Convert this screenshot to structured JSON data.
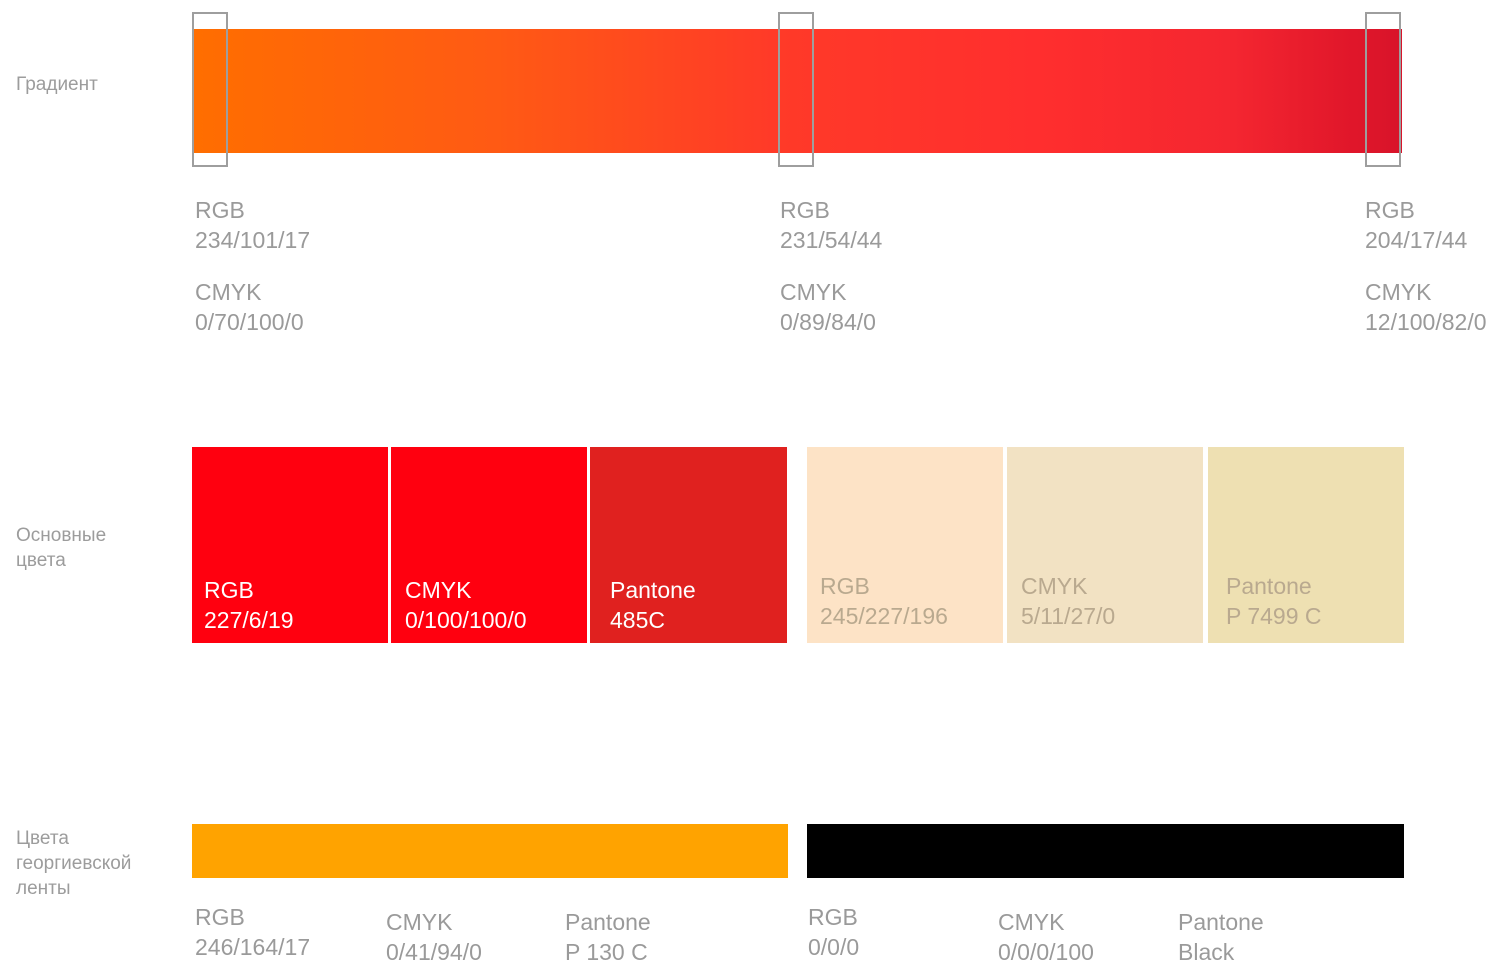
{
  "labels": {
    "gradient": "Градиент",
    "main_colors": "Основные\nцвета",
    "ribbon_colors": "Цвета\nгеоргиевской\nленты"
  },
  "gradient": {
    "stops": [
      {
        "rgb_label": "RGB",
        "rgb": "234/101/17",
        "cmyk_label": "CMYK",
        "cmyk": "0/70/100/0"
      },
      {
        "rgb_label": "RGB",
        "rgb": "231/54/44",
        "cmyk_label": "CMYK",
        "cmyk": "0/89/84/0"
      },
      {
        "rgb_label": "RGB",
        "rgb": "204/17/44",
        "cmyk_label": "CMYK",
        "cmyk": "12/100/82/0"
      }
    ]
  },
  "main_swatches": [
    {
      "label": "RGB",
      "value": "227/6/19",
      "color": "#ff000f"
    },
    {
      "label": "CMYK",
      "value": "0/100/100/0",
      "color": "#ff000f"
    },
    {
      "label": "Pantone",
      "value": "485C",
      "color": "#e0211f"
    },
    {
      "label": "RGB",
      "value": "245/227/196",
      "color": "#fde3c6"
    },
    {
      "label": "CMYK",
      "value": "5/11/27/0",
      "color": "#f2e2c3"
    },
    {
      "label": "Pantone",
      "value": "P 7499 C",
      "color": "#eee0b2"
    }
  ],
  "ribbon": {
    "orange": {
      "color": "#ffa300",
      "rgb_label": "RGB",
      "rgb": "246/164/17",
      "cmyk_label": "CMYK",
      "cmyk": "0/41/94/0",
      "pantone_label": "Pantone",
      "pantone": "P 130 C"
    },
    "black": {
      "color": "#000000",
      "rgb_label": "RGB",
      "rgb": "0/0/0",
      "cmyk_label": "CMYK",
      "cmyk": "0/0/0/100",
      "pantone_label": "Pantone",
      "pantone": "Black"
    }
  }
}
